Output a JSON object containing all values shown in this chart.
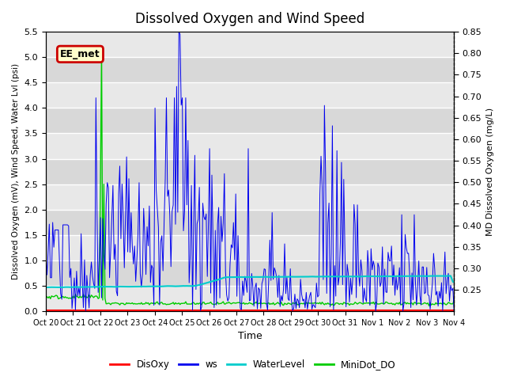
{
  "title": "Dissolved Oxygen and Wind Speed",
  "xlabel": "Time",
  "ylabel_left": "Dissolved Oxygen (mV), Wind Speed, Water Lvl (psi)",
  "ylabel_right": "MD Dissolved Oxygen (mg/L)",
  "ylim_left": [
    0.0,
    5.5
  ],
  "ylim_right": [
    0.2,
    0.85
  ],
  "yticks_left": [
    0.0,
    0.5,
    1.0,
    1.5,
    2.0,
    2.5,
    3.0,
    3.5,
    4.0,
    4.5,
    5.0,
    5.5
  ],
  "yticks_right": [
    0.25,
    0.3,
    0.35,
    0.4,
    0.45,
    0.5,
    0.55,
    0.6,
    0.65,
    0.7,
    0.75,
    0.8,
    0.85
  ],
  "xtick_labels": [
    "Oct 20",
    "Oct 21",
    "Oct 22",
    "Oct 23",
    "Oct 24",
    "Oct 25",
    "Oct 26",
    "Oct 27",
    "Oct 28",
    "Oct 29",
    "Oct 30",
    "Oct 31",
    "Nov 1",
    "Nov 2",
    "Nov 3",
    "Nov 4"
  ],
  "annotation_text": "EE_met",
  "annotation_color": "#cc0000",
  "bg_light": "#e8e8e8",
  "bg_dark": "#d8d8d8",
  "disoxy_color": "#ff0000",
  "ws_color": "#0000ee",
  "waterlevel_color": "#00cccc",
  "minidot_color": "#00cc00",
  "legend_labels": [
    "DisOxy",
    "ws",
    "WaterLevel",
    "MiniDot_DO"
  ],
  "title_fontsize": 12,
  "n_days": 15,
  "seed": 42
}
